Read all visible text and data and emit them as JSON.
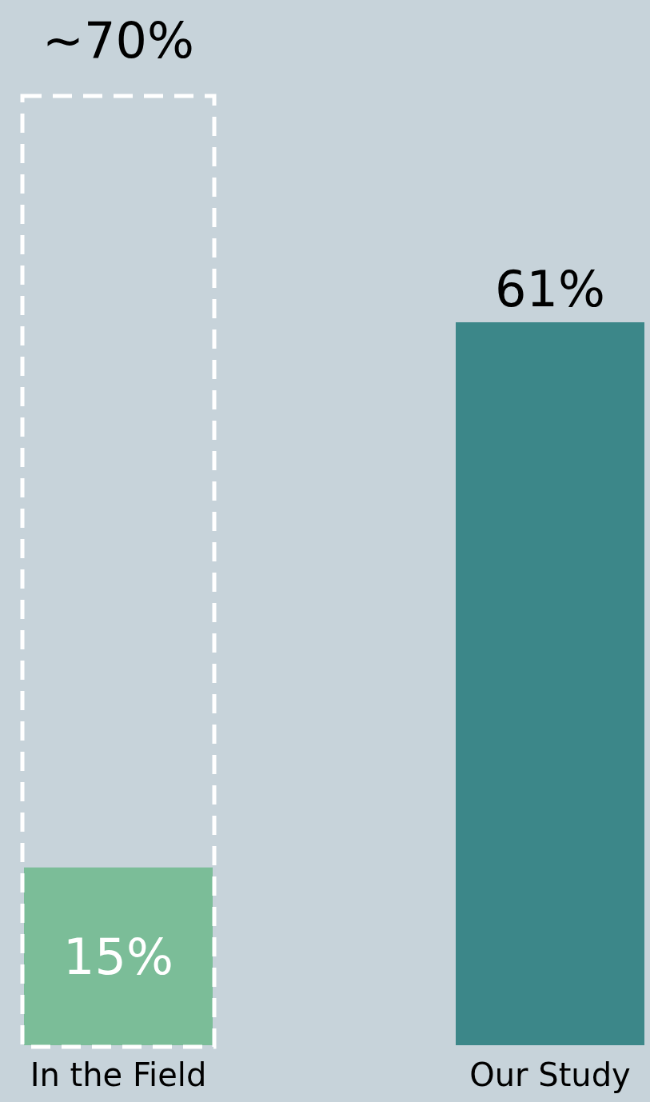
{
  "chart_data": {
    "type": "bar",
    "categories": [
      "In the Field",
      "Our Study"
    ],
    "values": [
      15,
      61
    ],
    "colors": [
      "#7bbd98",
      "#3c8789"
    ],
    "value_labels": [
      "15%",
      "61%"
    ],
    "annotations": [
      "~70%"
    ]
  }
}
